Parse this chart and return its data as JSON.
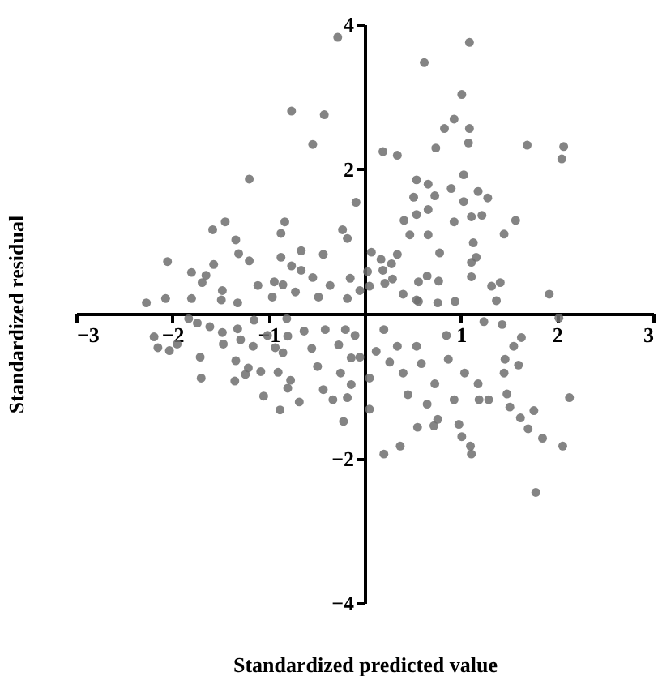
{
  "chart_data": {
    "type": "scatter",
    "xlabel": "Standardized predicted value",
    "ylabel": "Standardized residual",
    "xlim": [
      -3,
      3
    ],
    "ylim": [
      -4,
      4
    ],
    "xticks": [
      -3,
      -2,
      -1,
      1,
      2,
      3
    ],
    "yticks": [
      -4,
      -2,
      2,
      4
    ],
    "marker": "circle",
    "series": [
      {
        "color": "#6e6e6e",
        "x": [
          -0.28,
          -0.76,
          -0.42,
          -0.54,
          -1.2,
          -0.09,
          -1.45,
          -0.83,
          -0.23,
          -1.34,
          -0.87,
          -1.58,
          -1.31,
          -0.66,
          -0.43,
          -0.18,
          -2.05,
          -1.2,
          -1.57,
          -0.87,
          -1.8,
          -1.65,
          -0.76,
          -0.66,
          -0.54,
          -0.15,
          -1.69,
          -1.11,
          -0.85,
          -0.94,
          -1.48,
          -0.36,
          -0.72,
          -2.07,
          -2.27,
          -1.8,
          -1.49,
          -1.32,
          -0.96,
          -0.48,
          -0.18,
          -0.05,
          1.09,
          0.62,
          1.01,
          0.93,
          0.83,
          1.09,
          0.74,
          1.08,
          0.19,
          0.34,
          1.69,
          2.07,
          2.05,
          1.03,
          0.54,
          0.66,
          0.9,
          1.18,
          0.51,
          0.73,
          1.28,
          1.03,
          0.66,
          0.54,
          0.41,
          0.93,
          1.11,
          1.22,
          1.57,
          0.47,
          0.66,
          1.45,
          1.13,
          0.78,
          1.16,
          0.07,
          0.34,
          0.17,
          0.28,
          1.11,
          0.19,
          0.03,
          0.65,
          1.11,
          0.29,
          0.56,
          0.77,
          0.21,
          1.32,
          1.41,
          0.05,
          0.4,
          1.92,
          1.37,
          0.54,
          0.76,
          0.94,
          -2.19,
          -2.15,
          -2.03,
          -1.95,
          -1.74,
          -1.61,
          -1.71,
          -1.7,
          -1.48,
          -1.47,
          -1.32,
          -1.29,
          -1.34,
          -1.16,
          -1.21,
          -1.35,
          -1.24,
          -1.08,
          -1.05,
          -0.88,
          -1.01,
          -0.93,
          -0.85,
          -0.8,
          -0.9,
          -0.8,
          -0.68,
          -0.77,
          -0.63,
          -0.55,
          -0.49,
          -0.43,
          -0.41,
          -0.33,
          -0.27,
          -0.25,
          -0.22,
          -0.18,
          -0.14,
          -0.14,
          -0.2,
          -1.15,
          -1.83,
          -0.81,
          -0.1,
          -0.05,
          0.05,
          0.05,
          0.2,
          0.37,
          0.2,
          0.12,
          0.26,
          0.34,
          0.4,
          0.45,
          0.55,
          0.54,
          0.59,
          0.65,
          0.72,
          0.76,
          0.73,
          0.85,
          0.87,
          0.93,
          0.98,
          1.01,
          1.1,
          1.11,
          1.04,
          1.18,
          1.19,
          1.29,
          1.24,
          1.43,
          1.46,
          1.45,
          1.48,
          1.51,
          1.55,
          1.63,
          1.6,
          1.62,
          1.7,
          1.76,
          1.85,
          2.06,
          2.13,
          1.78,
          2.02,
          0.56
        ],
        "values": [
          3.82,
          2.8,
          2.75,
          2.34,
          1.86,
          1.54,
          1.27,
          1.27,
          1.16,
          1.02,
          1.11,
          1.16,
          0.83,
          0.87,
          0.82,
          1.04,
          0.72,
          0.73,
          0.68,
          0.78,
          0.57,
          0.53,
          0.66,
          0.6,
          0.5,
          0.49,
          0.43,
          0.39,
          0.4,
          0.44,
          0.32,
          0.39,
          0.3,
          0.21,
          0.15,
          0.21,
          0.19,
          0.15,
          0.23,
          0.23,
          0.21,
          0.32,
          3.75,
          3.47,
          3.03,
          2.69,
          2.56,
          2.56,
          2.29,
          2.36,
          2.24,
          2.19,
          2.33,
          2.31,
          2.14,
          1.92,
          1.85,
          1.79,
          1.73,
          1.69,
          1.61,
          1.63,
          1.6,
          1.55,
          1.44,
          1.37,
          1.29,
          1.27,
          1.34,
          1.36,
          1.29,
          1.09,
          1.09,
          1.1,
          0.98,
          0.84,
          0.78,
          0.85,
          0.82,
          0.75,
          0.69,
          0.71,
          0.6,
          0.58,
          0.52,
          0.51,
          0.48,
          0.44,
          0.45,
          0.42,
          0.38,
          0.43,
          0.38,
          0.27,
          0.27,
          0.18,
          0.19,
          0.15,
          0.17,
          -0.32,
          -0.47,
          -0.51,
          -0.42,
          -0.13,
          -0.18,
          -0.6,
          -0.89,
          -0.26,
          -0.42,
          -0.21,
          -0.36,
          -0.65,
          -0.45,
          -0.75,
          -0.93,
          -0.84,
          -0.8,
          -1.14,
          -1.33,
          -0.3,
          -0.47,
          -0.54,
          -0.31,
          -0.81,
          -1.03,
          -1.22,
          -0.92,
          -0.24,
          -0.48,
          -0.73,
          -1.05,
          -0.22,
          -1.19,
          -0.43,
          -0.82,
          -1.49,
          -1.16,
          -0.61,
          -0.98,
          -0.22,
          -0.09,
          -0.07,
          -0.07,
          -0.3,
          -0.6,
          -0.89,
          -1.32,
          -1.94,
          -1.83,
          -0.22,
          -0.52,
          -0.67,
          -0.45,
          -0.82,
          -1.12,
          -1.57,
          -0.45,
          -0.69,
          -1.25,
          -1.55,
          -1.46,
          -0.97,
          -0.3,
          -0.63,
          -1.19,
          -1.53,
          -1.7,
          -1.83,
          -1.94,
          -0.82,
          -0.97,
          -1.19,
          -1.19,
          -0.11,
          -0.15,
          -0.63,
          -0.82,
          -1.11,
          -1.29,
          -0.45,
          -0.33,
          -0.71,
          -1.44,
          -1.59,
          -1.34,
          -1.72,
          -1.83,
          -1.16,
          -2.47,
          -0.06,
          0.17
        ]
      }
    ]
  }
}
